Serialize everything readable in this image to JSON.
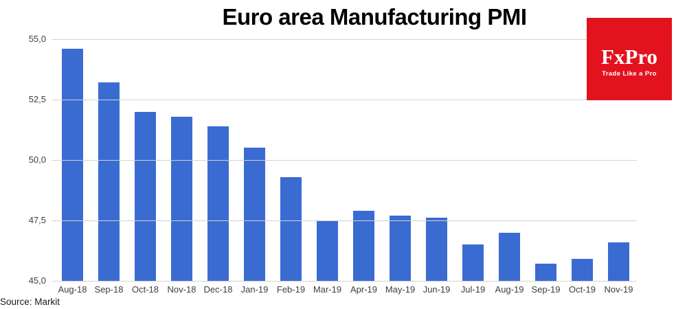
{
  "title": "Euro area Manufacturing PMI",
  "source_note": "Source: Markit",
  "logo": {
    "name": "FxPro",
    "tagline": "Trade Like a Pro",
    "bg_color": "#e2131e",
    "text_color": "#ffffff"
  },
  "colors": {
    "bar": "#3a6bd1",
    "gridline": "#d2d2d2",
    "axis_text": "#404040",
    "title_text": "#000000"
  },
  "chart_data": {
    "type": "bar",
    "title": "Euro area Manufacturing PMI",
    "xlabel": "",
    "ylabel": "",
    "categories": [
      "Aug-18",
      "Sep-18",
      "Oct-18",
      "Nov-18",
      "Dec-18",
      "Jan-19",
      "Feb-19",
      "Mar-19",
      "Apr-19",
      "May-19",
      "Jun-19",
      "Jul-19",
      "Aug-19",
      "Sep-19",
      "Oct-19",
      "Nov-19"
    ],
    "values": [
      54.6,
      53.2,
      52.0,
      51.8,
      51.4,
      50.5,
      49.3,
      47.5,
      47.9,
      47.7,
      47.6,
      46.5,
      47.0,
      45.7,
      45.9,
      46.6
    ],
    "ylim": [
      45.0,
      55.0
    ],
    "ytick_values": [
      55.0,
      52.5,
      50.0,
      47.5,
      45.0
    ],
    "ytick_labels": [
      "55,0",
      "52,5",
      "50,0",
      "47,5",
      "45,0"
    ],
    "grid": true,
    "legend": false
  }
}
